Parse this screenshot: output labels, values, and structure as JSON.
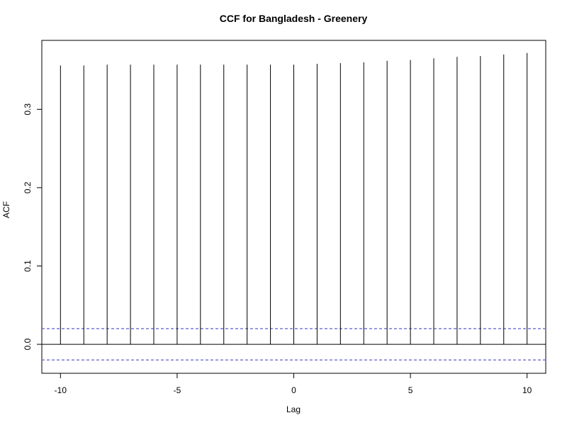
{
  "chart_data": {
    "type": "bar",
    "title": "CCF for Bangladesh - Greenery",
    "xlabel": "Lag",
    "ylabel": "ACF",
    "xlim": [
      -10.8,
      10.8
    ],
    "ylim": [
      -0.037,
      0.388
    ],
    "x_ticks": [
      -10,
      -5,
      0,
      5,
      10
    ],
    "y_ticks": [
      0.0,
      0.1,
      0.2,
      0.3
    ],
    "x": [
      -10,
      -9,
      -8,
      -7,
      -6,
      -5,
      -4,
      -3,
      -2,
      -1,
      0,
      1,
      2,
      3,
      4,
      5,
      6,
      7,
      8,
      9,
      10
    ],
    "values": [
      0.356,
      0.356,
      0.357,
      0.357,
      0.357,
      0.357,
      0.357,
      0.357,
      0.357,
      0.357,
      0.357,
      0.358,
      0.359,
      0.36,
      0.362,
      0.363,
      0.365,
      0.367,
      0.368,
      0.37,
      0.372
    ],
    "zero_line": 0.0,
    "confidence_bounds": [
      0.02,
      -0.02
    ],
    "confidence_color": "#6b6bd6",
    "bar_color": "#000000",
    "grid": false,
    "legend": "none"
  }
}
